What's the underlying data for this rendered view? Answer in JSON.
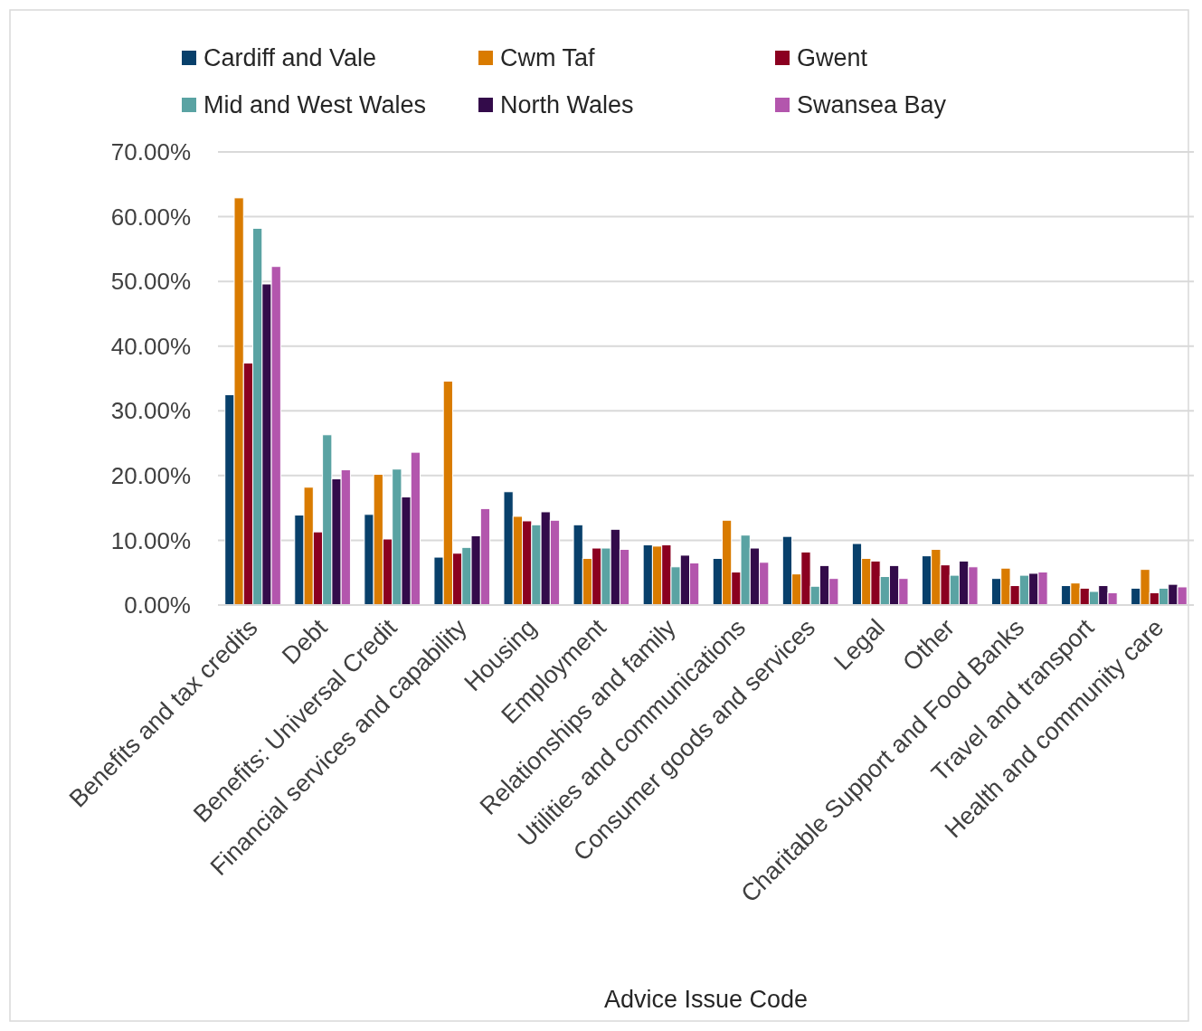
{
  "chart_data": {
    "type": "bar",
    "xlabel": "Advice Issue Code",
    "categories": [
      "Benefits and tax credits",
      "Debt",
      "Benefits: Universal Credit",
      "Financial services and capability",
      "Housing",
      "Employment",
      "Relationships and family",
      "Utilities and communications",
      "Consumer goods and services",
      "Legal",
      "Other",
      "Charitable Support and Food Banks",
      "Travel and transport",
      "Health and community care"
    ],
    "series": [
      {
        "name": "Cardiff and Vale",
        "color": "#08406b",
        "values": [
          32.5,
          13.9,
          14.0,
          7.4,
          17.5,
          12.4,
          9.3,
          7.2,
          10.6,
          9.5,
          7.6,
          4.1,
          3.0,
          2.6
        ]
      },
      {
        "name": "Cwm Taf",
        "color": "#d97b00",
        "values": [
          62.9,
          18.2,
          20.2,
          34.6,
          13.7,
          7.2,
          9.1,
          13.1,
          4.8,
          7.2,
          8.6,
          5.7,
          3.4,
          5.5
        ]
      },
      {
        "name": "Gwent",
        "color": "#8b0020",
        "values": [
          37.4,
          11.3,
          10.2,
          8.0,
          13.0,
          8.8,
          9.3,
          5.1,
          8.2,
          6.8,
          6.2,
          3.0,
          2.6,
          1.9
        ]
      },
      {
        "name": "Mid and West Wales",
        "color": "#5aa3a3",
        "values": [
          58.2,
          26.3,
          21.0,
          8.9,
          12.4,
          8.8,
          5.9,
          10.8,
          2.9,
          4.4,
          4.6,
          4.6,
          2.1,
          2.6
        ]
      },
      {
        "name": "North Wales",
        "color": "#330b4a",
        "values": [
          49.6,
          19.5,
          16.7,
          10.7,
          14.4,
          11.7,
          7.7,
          8.8,
          6.1,
          6.1,
          6.8,
          4.9,
          3.0,
          3.2
        ]
      },
      {
        "name": "Swansea Bay",
        "color": "#b356ad",
        "values": [
          52.3,
          20.9,
          23.6,
          14.9,
          13.1,
          8.6,
          6.5,
          6.6,
          4.1,
          4.1,
          5.9,
          5.1,
          1.9,
          2.8
        ]
      }
    ],
    "ylim": [
      0,
      70
    ],
    "yticks": [
      {
        "value": 0,
        "label": "0.00%"
      },
      {
        "value": 10,
        "label": "10.00%"
      },
      {
        "value": 20,
        "label": "20.00%"
      },
      {
        "value": 30,
        "label": "30.00%"
      },
      {
        "value": 40,
        "label": "40.00%"
      },
      {
        "value": 50,
        "label": "50.00%"
      },
      {
        "value": 60,
        "label": "60.00%"
      },
      {
        "value": 70,
        "label": "70.00%"
      }
    ],
    "grid": "y",
    "legend": "top left"
  }
}
